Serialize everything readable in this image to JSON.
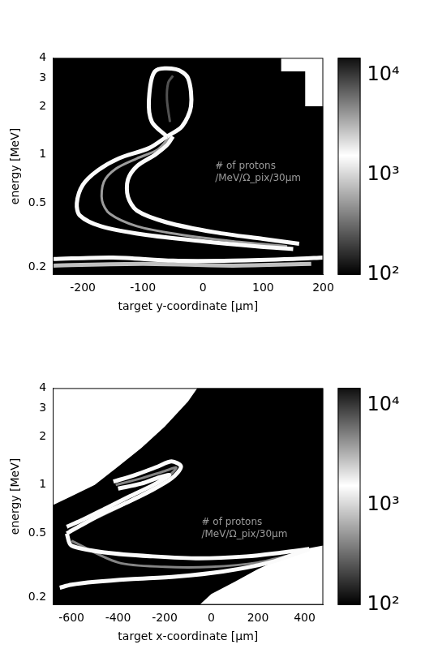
{
  "chart_data": [
    {
      "type": "heatmap",
      "x_label": "target y-coordinate [µm]",
      "y_label": "energy [MeV]",
      "log": "y",
      "grid": false,
      "xlim": [
        -250,
        200
      ],
      "xticks": [
        -200,
        -100,
        0,
        100,
        200
      ],
      "ylim": [
        0.18,
        4
      ],
      "yticks": [
        0.2,
        0.5,
        1,
        2,
        3,
        4
      ],
      "annotation": [
        "# of protons",
        "/MeV/Ω_pix/30µm"
      ],
      "colorbar": {
        "range": [
          100,
          15000
        ],
        "ticks": [
          {
            "value": 100,
            "label": "10²"
          },
          {
            "value": 1000,
            "label": "10³"
          },
          {
            "value": 10000,
            "label": "10⁴"
          }
        ]
      },
      "coverage": {
        "x": [
          -250,
          -250,
          130,
          130,
          170,
          170,
          200,
          200
        ],
        "y": [
          0.18,
          4,
          4,
          3.3,
          3.3,
          2.0,
          2.0,
          0.18
        ]
      },
      "contours": [
        {
          "value": 1500,
          "x": [
            -60,
            -90,
            -140,
            -175,
            -200,
            -210,
            -205,
            -170,
            -100,
            0,
            90,
            150
          ],
          "y": [
            1.3,
            1.1,
            0.95,
            0.8,
            0.65,
            0.5,
            0.42,
            0.36,
            0.32,
            0.29,
            0.27,
            0.26
          ]
        },
        {
          "value": 1500,
          "x": [
            -50,
            -60,
            -80,
            -110,
            -125,
            -125,
            -110,
            -60,
            20,
            100,
            160
          ],
          "y": [
            1.3,
            1.15,
            1.0,
            0.85,
            0.7,
            0.55,
            0.45,
            0.38,
            0.33,
            0.3,
            0.28
          ]
        },
        {
          "value": 1500,
          "x": [
            -60,
            -85,
            -90,
            -80,
            -45,
            -25,
            -20,
            -35,
            -60
          ],
          "y": [
            1.3,
            1.6,
            2.2,
            3.3,
            3.4,
            3.0,
            2.0,
            1.5,
            1.3
          ]
        },
        {
          "value": 1500,
          "x": [
            -250,
            -150,
            -50,
            50,
            150,
            200
          ],
          "y": [
            0.225,
            0.23,
            0.22,
            0.22,
            0.225,
            0.23
          ]
        },
        {
          "value": 800,
          "x": [
            -250,
            -100,
            50,
            180
          ],
          "y": [
            0.205,
            0.21,
            0.205,
            0.21
          ]
        },
        {
          "value": 4000,
          "x": [
            -55,
            -75,
            -110,
            -145,
            -165,
            -168,
            -155,
            -110,
            -40,
            50,
            140
          ],
          "y": [
            1.3,
            1.08,
            0.95,
            0.82,
            0.68,
            0.52,
            0.43,
            0.36,
            0.32,
            0.29,
            0.27
          ]
        },
        {
          "value": 8000,
          "x": [
            -55,
            -60,
            -58,
            -50
          ],
          "y": [
            1.6,
            2.2,
            2.8,
            3.1
          ]
        }
      ]
    },
    {
      "type": "heatmap",
      "x_label": "target x-coordinate [µm]",
      "y_label": "energy [MeV]",
      "log": "y",
      "grid": false,
      "xlim": [
        -680,
        480
      ],
      "xticks": [
        -600,
        -400,
        -200,
        0,
        200,
        400
      ],
      "ylim": [
        0.18,
        4
      ],
      "yticks": [
        0.2,
        0.5,
        1,
        2,
        3,
        4
      ],
      "annotation": [
        "# of protons",
        "/MeV/Ω_pix/30µm"
      ],
      "colorbar": {
        "range": [
          100,
          15000
        ],
        "ticks": [
          {
            "value": 100,
            "label": "10²"
          },
          {
            "value": 1000,
            "label": "10³"
          },
          {
            "value": 10000,
            "label": "10⁴"
          }
        ]
      },
      "coverage": {
        "x": [
          -680,
          -680,
          -600,
          -500,
          -400,
          -300,
          -200,
          -100,
          -60,
          480,
          480,
          400,
          300,
          200,
          100,
          0,
          -50
        ],
        "y": [
          0.18,
          0.75,
          0.85,
          1.0,
          1.3,
          1.7,
          2.3,
          3.3,
          4,
          4,
          0.42,
          0.4,
          0.35,
          0.3,
          0.25,
          0.21,
          0.18
        ]
      },
      "contours": [
        {
          "value": 1500,
          "x": [
            -420,
            -330,
            -230,
            -170,
            -130,
            -170,
            -260,
            -360,
            -470,
            -560,
            -620
          ],
          "y": [
            1.05,
            1.15,
            1.3,
            1.4,
            1.3,
            1.1,
            0.92,
            0.78,
            0.66,
            0.56,
            0.5
          ]
        },
        {
          "value": 1500,
          "x": [
            -400,
            -300,
            -220,
            -180,
            -250,
            -350,
            -450,
            -560,
            -620
          ],
          "y": [
            0.95,
            1.02,
            1.12,
            1.15,
            1.0,
            0.85,
            0.72,
            0.6,
            0.55
          ]
        },
        {
          "value": 1500,
          "x": [
            -620,
            -600,
            -450,
            -250,
            -50,
            150,
            300,
            420
          ],
          "y": [
            0.5,
            0.42,
            0.38,
            0.36,
            0.35,
            0.36,
            0.38,
            0.4
          ]
        },
        {
          "value": 1500,
          "x": [
            420,
            250,
            50,
            -150,
            -350,
            -500,
            -600,
            -650
          ],
          "y": [
            0.4,
            0.33,
            0.29,
            0.27,
            0.26,
            0.25,
            0.24,
            0.23
          ]
        },
        {
          "value": 5000,
          "x": [
            -410,
            -300,
            -200,
            -150,
            -210,
            -310,
            -420,
            -540,
            -610
          ],
          "y": [
            1.0,
            1.1,
            1.22,
            1.28,
            1.05,
            0.85,
            0.7,
            0.58,
            0.52
          ]
        },
        {
          "value": 5000,
          "x": [
            -600,
            -400,
            -200,
            0,
            200,
            380
          ],
          "y": [
            0.45,
            0.33,
            0.31,
            0.31,
            0.33,
            0.38
          ]
        }
      ]
    }
  ]
}
